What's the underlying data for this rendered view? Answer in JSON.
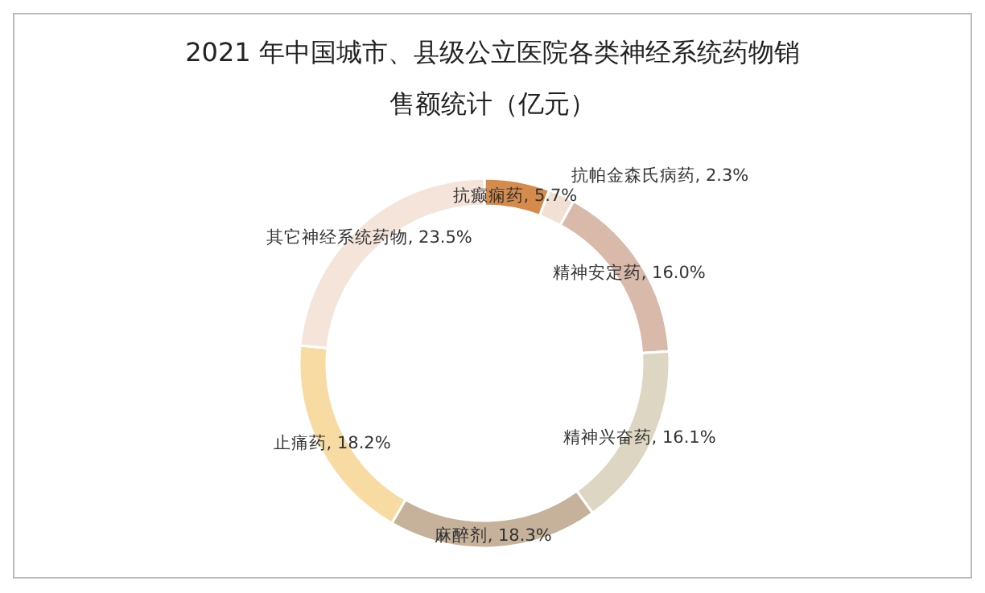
{
  "chart_data": {
    "type": "donut",
    "title": "2021 年中国城市、县级公立医院各类神经系统药物销售额统计（亿元）",
    "categories": [
      "抗癫痫药",
      "抗帕金森氏病药",
      "精神安定药",
      "精神兴奋药",
      "麻醉剂",
      "止痛药",
      "其它神经系统药物"
    ],
    "values": [
      5.7,
      2.3,
      16.0,
      16.1,
      18.3,
      18.2,
      23.5
    ],
    "value_labels": [
      "5.7%",
      "2.3%",
      "16.0%",
      "16.1%",
      "18.3%",
      "18.2%",
      "23.5%"
    ],
    "colors": [
      "#d58b4c",
      "#f1e0d3",
      "#d8b9aa",
      "#ddd6c2",
      "#c6b29a",
      "#f8dba3",
      "#f4e4d9"
    ]
  }
}
